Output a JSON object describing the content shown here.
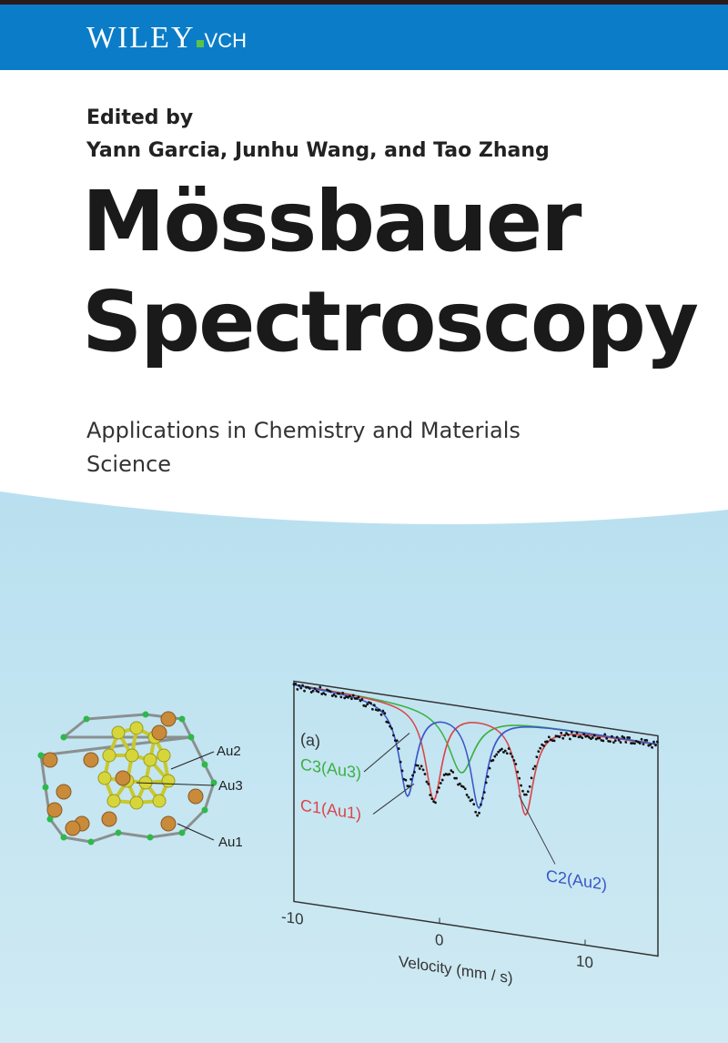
{
  "publisher": {
    "name": "WILEY",
    "imprint": "VCH",
    "colors": {
      "header": "#0b7dc8",
      "accent": "#5cc24a"
    }
  },
  "cover": {
    "edited_by": "Edited by",
    "editors": "Yann Garcia, Junhu Wang, and Tao Zhang",
    "title_line1": "Mössbauer",
    "title_line2": "Spectroscopy",
    "subtitle": "Applications in Chemistry and Materials Science"
  },
  "illustration": {
    "labels": {
      "au2": "Au2",
      "au3": "Au3",
      "au1": "Au1"
    }
  },
  "chart_data": {
    "type": "line",
    "panel_label": "(a)",
    "xlabel": "Velocity (mm / s)",
    "xlim": [
      -10,
      15
    ],
    "xticks": [
      "-10",
      "0",
      "10"
    ],
    "series": [
      {
        "name": "C3(Au3)",
        "color": "#3cb043",
        "dips": [
          1.5
        ],
        "depth": 0.28,
        "width": 2.2
      },
      {
        "name": "C1(Au1)",
        "color": "#d9464a",
        "dips": [
          -0.4,
          5.9
        ],
        "depth": 0.42,
        "width": 1.4
      },
      {
        "name": "C2(Au2)",
        "color": "#3a56c8",
        "dips": [
          -2.2,
          2.7
        ],
        "depth": 0.42,
        "width": 1.4
      }
    ],
    "data_color": "#111111"
  }
}
